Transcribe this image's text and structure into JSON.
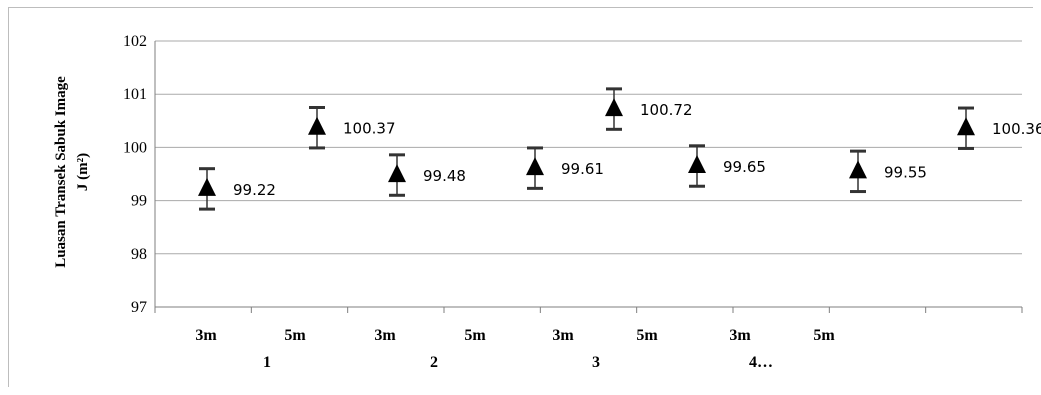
{
  "chart_data": {
    "type": "scatter",
    "ylabel_line1": "Luasan Transek Sabuk Image",
    "ylabel_line2": "J (m²)",
    "ylim": [
      97,
      102
    ],
    "yticks": [
      "97",
      "98",
      "99",
      "100",
      "101",
      "102"
    ],
    "grid": true,
    "legend": "none",
    "marker": "triangle",
    "error_bar": 0.38,
    "points": [
      {
        "value": 99.22,
        "label": "99.22"
      },
      {
        "value": 100.37,
        "label": "100.37"
      },
      {
        "value": 99.48,
        "label": "99.48"
      },
      {
        "value": 99.61,
        "label": "99.61"
      },
      {
        "value": 100.72,
        "label": "100.72"
      },
      {
        "value": 99.65,
        "label": "99.65"
      },
      {
        "value": 99.55,
        "label": "99.55"
      },
      {
        "value": 100.36,
        "label": "100.36"
      }
    ],
    "x_sub_labels": [
      "3m",
      "5m",
      "3m",
      "5m",
      "3m",
      "5m",
      "3m",
      "5m"
    ],
    "x_group_labels": [
      "1",
      "2",
      "3",
      "4…"
    ],
    "colors": {
      "marker": "#000000",
      "error_bar": "#333333",
      "grid": "#aaaaaa",
      "axis": "#7f7f7f"
    }
  }
}
